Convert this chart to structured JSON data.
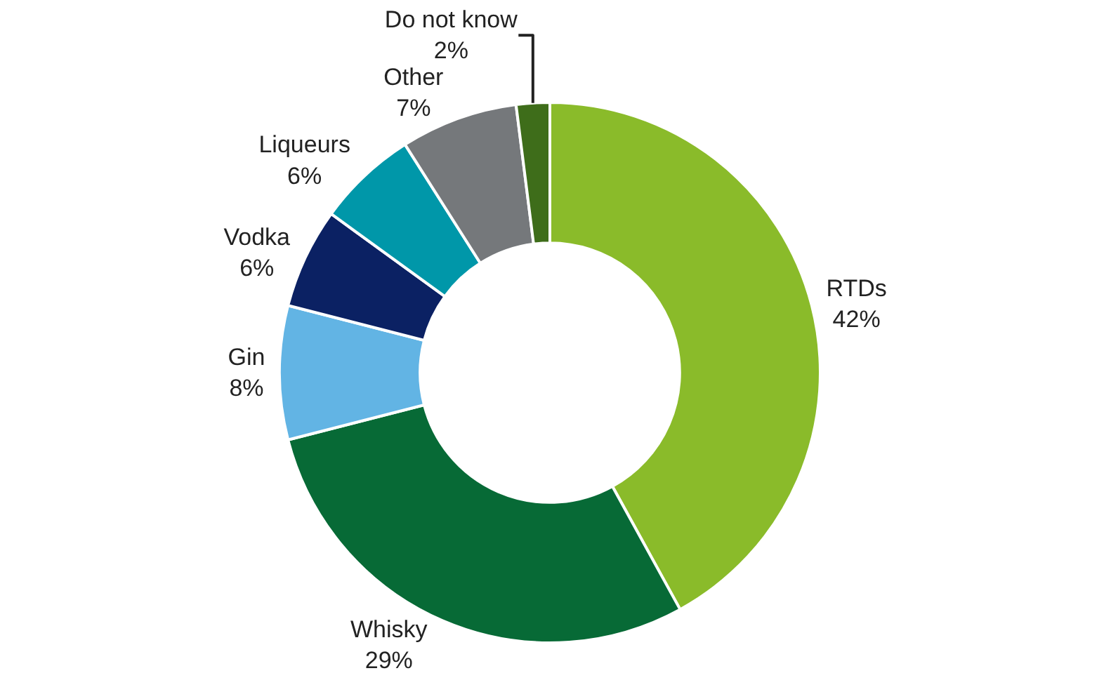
{
  "chart_data": {
    "type": "donut",
    "categories": [
      "RTDs",
      "Whisky",
      "Gin",
      "Vodka",
      "Liqueurs",
      "Other",
      "Do not know"
    ],
    "values": [
      42,
      29,
      8,
      6,
      6,
      7,
      2
    ],
    "value_labels": [
      "42%",
      "29%",
      "8%",
      "6%",
      "6%",
      "7%",
      "2%"
    ],
    "colors": [
      "#8abb2a",
      "#076a36",
      "#62b4e4",
      "#0b2163",
      "#0097a9",
      "#75787b",
      "#3e6d1a"
    ],
    "legend": false
  }
}
